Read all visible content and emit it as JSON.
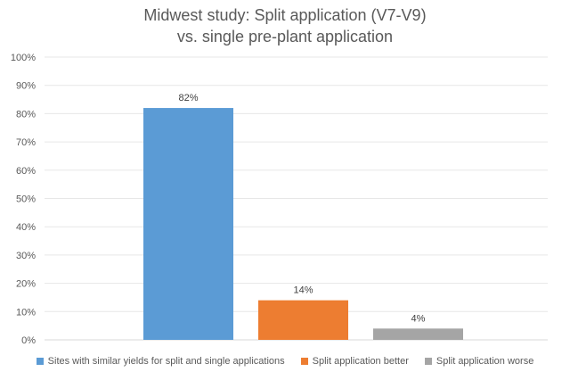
{
  "chart_data": {
    "type": "bar",
    "title_lines": [
      "Midwest study: Split application (V7-V9)",
      "vs. single pre-plant application"
    ],
    "categories": [
      "Sites with similar yields for split and single applications",
      "Split application better",
      "Split application worse"
    ],
    "values": [
      82,
      14,
      4
    ],
    "data_labels": [
      "82%",
      "14%",
      "4%"
    ],
    "colors": [
      "#5b9bd5",
      "#ed7d31",
      "#a5a5a5"
    ],
    "ylim": [
      0,
      100
    ],
    "yticks": [
      0,
      10,
      20,
      30,
      40,
      50,
      60,
      70,
      80,
      90,
      100
    ],
    "ytick_labels": [
      "0%",
      "10%",
      "20%",
      "30%",
      "40%",
      "50%",
      "60%",
      "70%",
      "80%",
      "90%",
      "100%"
    ],
    "grid": true,
    "legend_position": "bottom",
    "xlabel": "",
    "ylabel": ""
  }
}
